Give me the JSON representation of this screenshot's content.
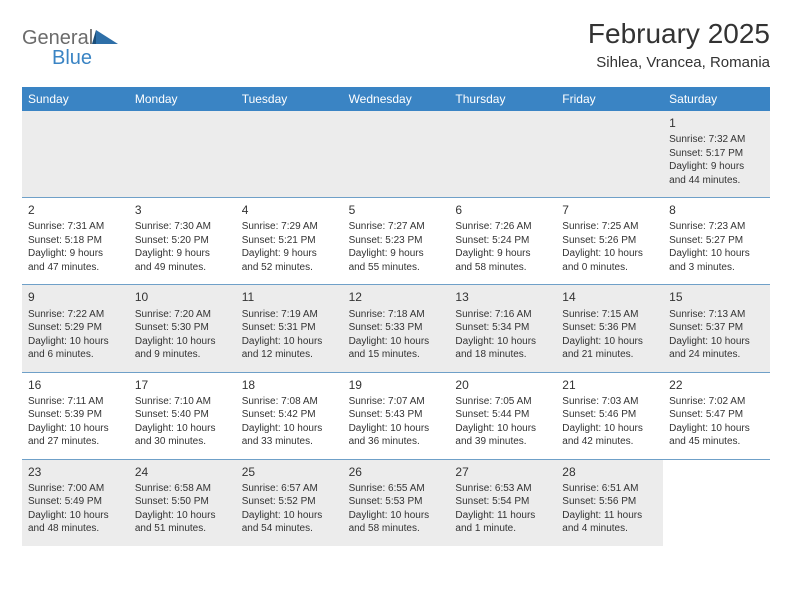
{
  "logo": {
    "general": "General",
    "blue": "Blue"
  },
  "header": {
    "month_title": "February 2025",
    "location": "Sihlea, Vrancea, Romania"
  },
  "colors": {
    "header_bar": "#3a84c4",
    "row_divider": "#6fa0c8",
    "alt_row_bg": "#ececec",
    "text": "#333333",
    "logo_gray": "#6b6b6b",
    "logo_blue": "#3a84c4",
    "background": "#ffffff"
  },
  "daynames": [
    "Sunday",
    "Monday",
    "Tuesday",
    "Wednesday",
    "Thursday",
    "Friday",
    "Saturday"
  ],
  "weeks": [
    [
      {
        "empty": true
      },
      {
        "empty": true
      },
      {
        "empty": true
      },
      {
        "empty": true
      },
      {
        "empty": true
      },
      {
        "empty": true
      },
      {
        "day": "1",
        "sunrise": "Sunrise: 7:32 AM",
        "sunset": "Sunset: 5:17 PM",
        "daylight1": "Daylight: 9 hours",
        "daylight2": "and 44 minutes."
      }
    ],
    [
      {
        "day": "2",
        "sunrise": "Sunrise: 7:31 AM",
        "sunset": "Sunset: 5:18 PM",
        "daylight1": "Daylight: 9 hours",
        "daylight2": "and 47 minutes."
      },
      {
        "day": "3",
        "sunrise": "Sunrise: 7:30 AM",
        "sunset": "Sunset: 5:20 PM",
        "daylight1": "Daylight: 9 hours",
        "daylight2": "and 49 minutes."
      },
      {
        "day": "4",
        "sunrise": "Sunrise: 7:29 AM",
        "sunset": "Sunset: 5:21 PM",
        "daylight1": "Daylight: 9 hours",
        "daylight2": "and 52 minutes."
      },
      {
        "day": "5",
        "sunrise": "Sunrise: 7:27 AM",
        "sunset": "Sunset: 5:23 PM",
        "daylight1": "Daylight: 9 hours",
        "daylight2": "and 55 minutes."
      },
      {
        "day": "6",
        "sunrise": "Sunrise: 7:26 AM",
        "sunset": "Sunset: 5:24 PM",
        "daylight1": "Daylight: 9 hours",
        "daylight2": "and 58 minutes."
      },
      {
        "day": "7",
        "sunrise": "Sunrise: 7:25 AM",
        "sunset": "Sunset: 5:26 PM",
        "daylight1": "Daylight: 10 hours",
        "daylight2": "and 0 minutes."
      },
      {
        "day": "8",
        "sunrise": "Sunrise: 7:23 AM",
        "sunset": "Sunset: 5:27 PM",
        "daylight1": "Daylight: 10 hours",
        "daylight2": "and 3 minutes."
      }
    ],
    [
      {
        "day": "9",
        "sunrise": "Sunrise: 7:22 AM",
        "sunset": "Sunset: 5:29 PM",
        "daylight1": "Daylight: 10 hours",
        "daylight2": "and 6 minutes."
      },
      {
        "day": "10",
        "sunrise": "Sunrise: 7:20 AM",
        "sunset": "Sunset: 5:30 PM",
        "daylight1": "Daylight: 10 hours",
        "daylight2": "and 9 minutes."
      },
      {
        "day": "11",
        "sunrise": "Sunrise: 7:19 AM",
        "sunset": "Sunset: 5:31 PM",
        "daylight1": "Daylight: 10 hours",
        "daylight2": "and 12 minutes."
      },
      {
        "day": "12",
        "sunrise": "Sunrise: 7:18 AM",
        "sunset": "Sunset: 5:33 PM",
        "daylight1": "Daylight: 10 hours",
        "daylight2": "and 15 minutes."
      },
      {
        "day": "13",
        "sunrise": "Sunrise: 7:16 AM",
        "sunset": "Sunset: 5:34 PM",
        "daylight1": "Daylight: 10 hours",
        "daylight2": "and 18 minutes."
      },
      {
        "day": "14",
        "sunrise": "Sunrise: 7:15 AM",
        "sunset": "Sunset: 5:36 PM",
        "daylight1": "Daylight: 10 hours",
        "daylight2": "and 21 minutes."
      },
      {
        "day": "15",
        "sunrise": "Sunrise: 7:13 AM",
        "sunset": "Sunset: 5:37 PM",
        "daylight1": "Daylight: 10 hours",
        "daylight2": "and 24 minutes."
      }
    ],
    [
      {
        "day": "16",
        "sunrise": "Sunrise: 7:11 AM",
        "sunset": "Sunset: 5:39 PM",
        "daylight1": "Daylight: 10 hours",
        "daylight2": "and 27 minutes."
      },
      {
        "day": "17",
        "sunrise": "Sunrise: 7:10 AM",
        "sunset": "Sunset: 5:40 PM",
        "daylight1": "Daylight: 10 hours",
        "daylight2": "and 30 minutes."
      },
      {
        "day": "18",
        "sunrise": "Sunrise: 7:08 AM",
        "sunset": "Sunset: 5:42 PM",
        "daylight1": "Daylight: 10 hours",
        "daylight2": "and 33 minutes."
      },
      {
        "day": "19",
        "sunrise": "Sunrise: 7:07 AM",
        "sunset": "Sunset: 5:43 PM",
        "daylight1": "Daylight: 10 hours",
        "daylight2": "and 36 minutes."
      },
      {
        "day": "20",
        "sunrise": "Sunrise: 7:05 AM",
        "sunset": "Sunset: 5:44 PM",
        "daylight1": "Daylight: 10 hours",
        "daylight2": "and 39 minutes."
      },
      {
        "day": "21",
        "sunrise": "Sunrise: 7:03 AM",
        "sunset": "Sunset: 5:46 PM",
        "daylight1": "Daylight: 10 hours",
        "daylight2": "and 42 minutes."
      },
      {
        "day": "22",
        "sunrise": "Sunrise: 7:02 AM",
        "sunset": "Sunset: 5:47 PM",
        "daylight1": "Daylight: 10 hours",
        "daylight2": "and 45 minutes."
      }
    ],
    [
      {
        "day": "23",
        "sunrise": "Sunrise: 7:00 AM",
        "sunset": "Sunset: 5:49 PM",
        "daylight1": "Daylight: 10 hours",
        "daylight2": "and 48 minutes."
      },
      {
        "day": "24",
        "sunrise": "Sunrise: 6:58 AM",
        "sunset": "Sunset: 5:50 PM",
        "daylight1": "Daylight: 10 hours",
        "daylight2": "and 51 minutes."
      },
      {
        "day": "25",
        "sunrise": "Sunrise: 6:57 AM",
        "sunset": "Sunset: 5:52 PM",
        "daylight1": "Daylight: 10 hours",
        "daylight2": "and 54 minutes."
      },
      {
        "day": "26",
        "sunrise": "Sunrise: 6:55 AM",
        "sunset": "Sunset: 5:53 PM",
        "daylight1": "Daylight: 10 hours",
        "daylight2": "and 58 minutes."
      },
      {
        "day": "27",
        "sunrise": "Sunrise: 6:53 AM",
        "sunset": "Sunset: 5:54 PM",
        "daylight1": "Daylight: 11 hours",
        "daylight2": "and 1 minute."
      },
      {
        "day": "28",
        "sunrise": "Sunrise: 6:51 AM",
        "sunset": "Sunset: 5:56 PM",
        "daylight1": "Daylight: 11 hours",
        "daylight2": "and 4 minutes."
      },
      {
        "empty": true,
        "plain": true
      }
    ]
  ]
}
